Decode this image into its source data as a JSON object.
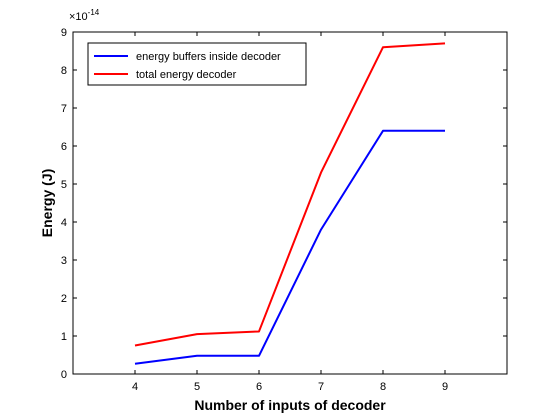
{
  "chart_data": {
    "type": "line",
    "title": "",
    "xlabel": "Number of inputs of decoder",
    "ylabel": "Energy (J)",
    "exponent_label": {
      "base": "×10",
      "power": "-14"
    },
    "x": [
      4,
      5,
      6,
      7,
      8,
      9
    ],
    "xlim": [
      3,
      10
    ],
    "ylim": [
      0,
      9
    ],
    "x_ticks": [
      4,
      5,
      6,
      7,
      8,
      9
    ],
    "y_ticks": [
      0,
      1,
      2,
      3,
      4,
      5,
      6,
      7,
      8,
      9
    ],
    "grid": false,
    "legend_position": "top-left",
    "series": [
      {
        "name": "energy buffers inside decoder",
        "color": "#0000ff",
        "values": [
          0.27,
          0.48,
          0.48,
          3.8,
          6.4,
          6.4
        ]
      },
      {
        "name": "total energy decoder",
        "color": "#ff0000",
        "values": [
          0.75,
          1.05,
          1.12,
          5.3,
          8.6,
          8.7
        ]
      }
    ]
  }
}
